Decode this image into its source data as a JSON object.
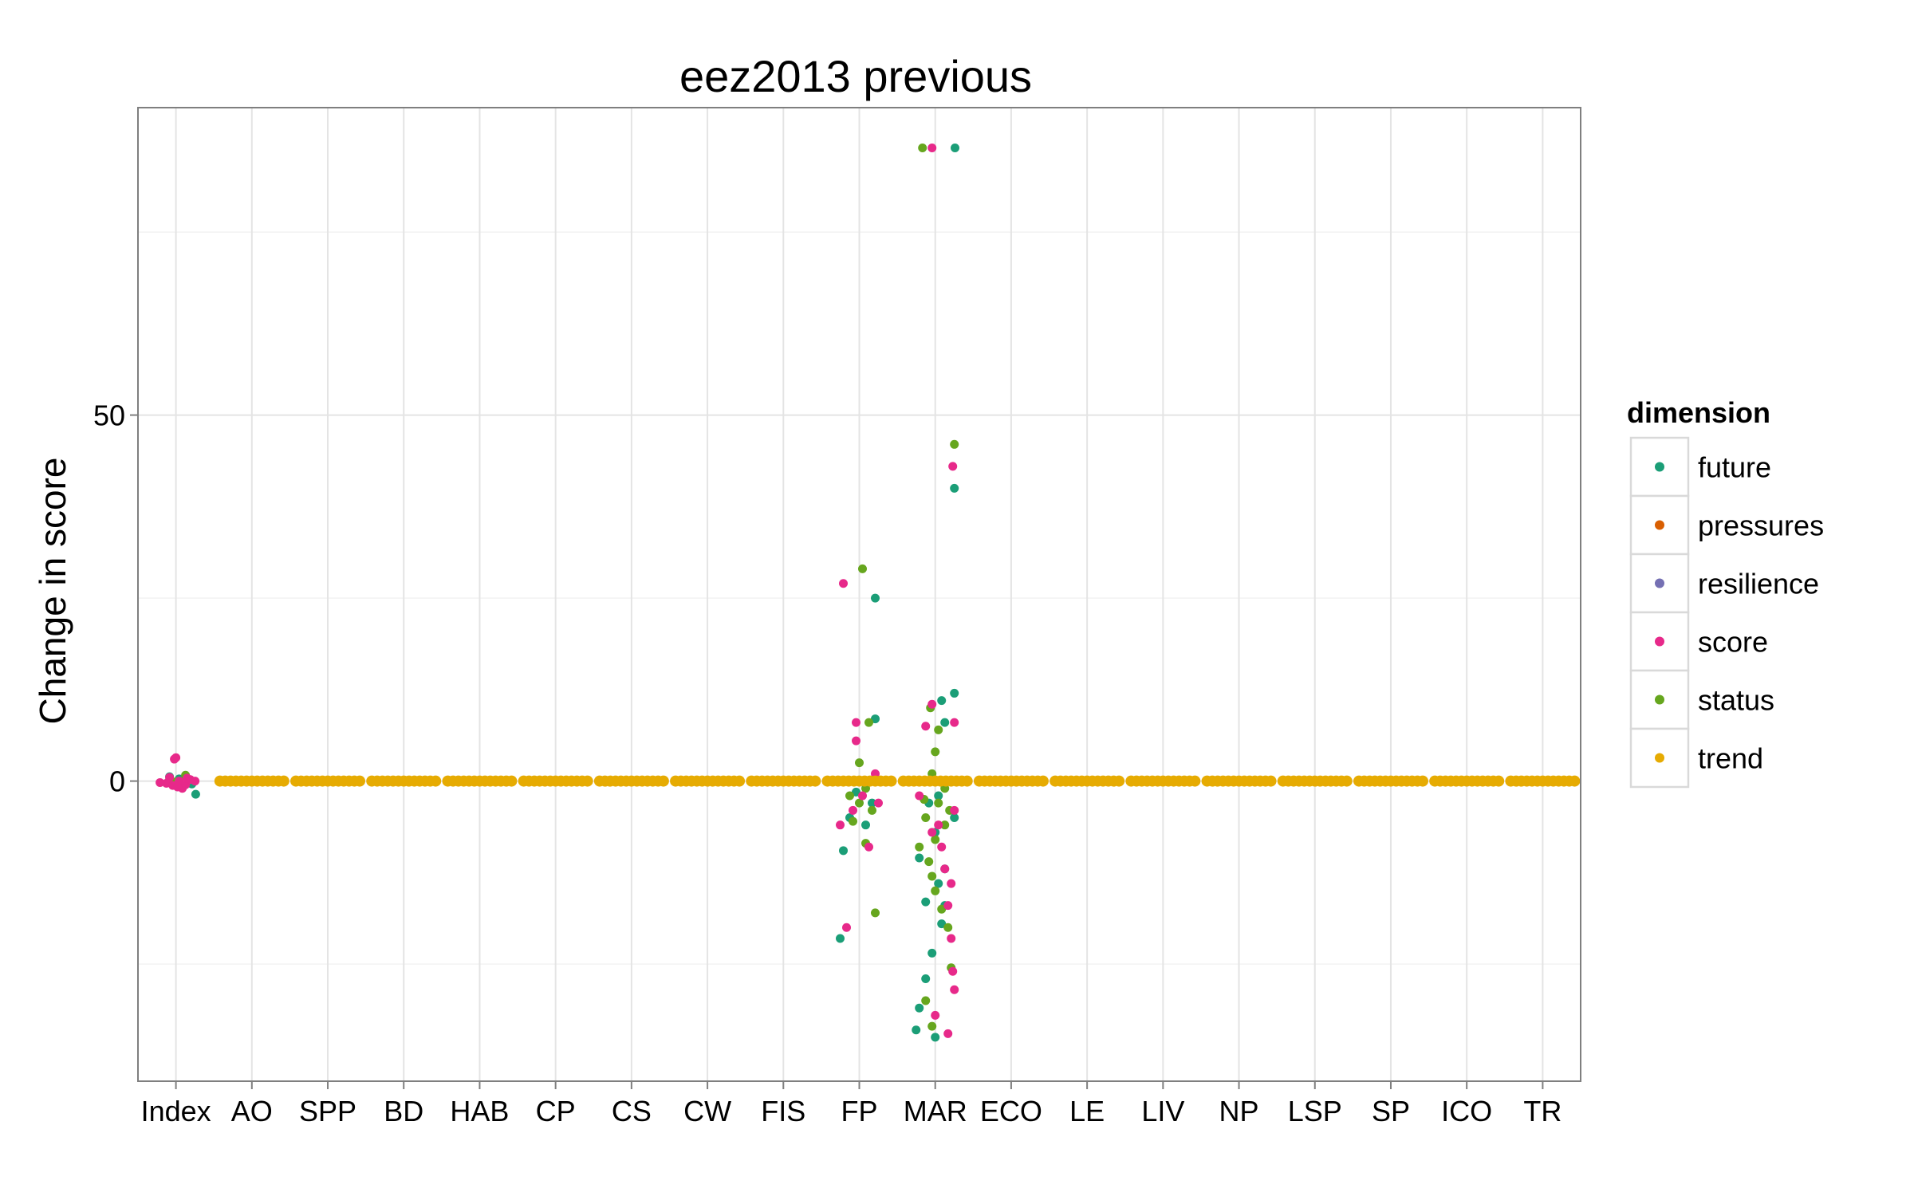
{
  "chart_data": {
    "type": "scatter",
    "title": "eez2013 previous",
    "xlabel": "",
    "ylabel": "Change in score",
    "categories": [
      "Index",
      "AO",
      "SPP",
      "BD",
      "HAB",
      "CP",
      "CS",
      "CW",
      "FIS",
      "FP",
      "MAR",
      "ECO",
      "LE",
      "LIV",
      "NP",
      "LSP",
      "SP",
      "ICO",
      "TR"
    ],
    "ylim": [
      -41,
      92
    ],
    "yticks": [
      0,
      50
    ],
    "grid": true,
    "legend": {
      "title": "dimension",
      "placement": "right",
      "entries": [
        {
          "name": "future",
          "color": "#1b9e77"
        },
        {
          "name": "pressures",
          "color": "#d95f02"
        },
        {
          "name": "resilience",
          "color": "#7570b3"
        },
        {
          "name": "score",
          "color": "#e7298a"
        },
        {
          "name": "status",
          "color": "#66a61e"
        },
        {
          "name": "trend",
          "color": "#e6ab02"
        }
      ]
    },
    "series": [
      {
        "name": "future",
        "color": "#1b9e77",
        "points": [
          [
            "Index",
            -0.4,
            0.5
          ],
          [
            "Index",
            -1.8,
            0.62
          ],
          [
            "Index",
            0.6,
            -0.2
          ],
          [
            "Index",
            0.3,
            0.1
          ],
          [
            "FP",
            25,
            0.5
          ],
          [
            "FP",
            8.5,
            0.5
          ],
          [
            "FP",
            -21.5,
            -0.6
          ],
          [
            "FP",
            -9.5,
            -0.5
          ],
          [
            "FP",
            -6,
            0.2
          ],
          [
            "FP",
            -5,
            -0.3
          ],
          [
            "FP",
            -3,
            0.4
          ],
          [
            "FP",
            -1.5,
            -0.1
          ],
          [
            "MAR",
            86.5,
            0.62
          ],
          [
            "MAR",
            40,
            0.6
          ],
          [
            "MAR",
            12,
            0.6
          ],
          [
            "MAR",
            11,
            0.2
          ],
          [
            "MAR",
            8,
            0.3
          ],
          [
            "MAR",
            -5,
            0.6
          ],
          [
            "MAR",
            -10.5,
            -0.5
          ],
          [
            "MAR",
            -12,
            0.3
          ],
          [
            "MAR",
            -16.5,
            -0.3
          ],
          [
            "MAR",
            -17,
            0.3
          ],
          [
            "MAR",
            -23.5,
            -0.1
          ],
          [
            "MAR",
            -27,
            -0.3
          ],
          [
            "MAR",
            -31,
            -0.5
          ],
          [
            "MAR",
            -34,
            -0.6
          ],
          [
            "MAR",
            -35,
            0.0
          ],
          [
            "MAR",
            -3,
            -0.2
          ],
          [
            "MAR",
            -2,
            0.1
          ],
          [
            "MAR",
            -7,
            0.0
          ],
          [
            "MAR",
            -14,
            0.1
          ],
          [
            "MAR",
            -19.5,
            0.2
          ]
        ]
      },
      {
        "name": "pressures",
        "color": "#d95f02",
        "points": []
      },
      {
        "name": "resilience",
        "color": "#7570b3",
        "points": []
      },
      {
        "name": "score",
        "color": "#e7298a",
        "points": [
          [
            "Index",
            3,
            -0.05
          ],
          [
            "Index",
            3.2,
            0.0
          ],
          [
            "Index",
            0.5,
            -0.2
          ],
          [
            "Index",
            0,
            0.1
          ],
          [
            "Index",
            -0.5,
            0.3
          ],
          [
            "Index",
            -1,
            0.2
          ],
          [
            "Index",
            -0.3,
            -0.3
          ],
          [
            "Index",
            0.2,
            0.45
          ],
          [
            "Index",
            -0.6,
            -0.1
          ],
          [
            "Index",
            0,
            0.6
          ],
          [
            "Index",
            -0.2,
            -0.5
          ],
          [
            "Index",
            0.4,
            0.35
          ],
          [
            "Index",
            -0.8,
            0.05
          ],
          [
            "FP",
            27,
            -0.5
          ],
          [
            "FP",
            8,
            -0.1
          ],
          [
            "FP",
            5.5,
            -0.1
          ],
          [
            "FP",
            1,
            0.5
          ],
          [
            "FP",
            -20,
            -0.4
          ],
          [
            "FP",
            -9,
            0.3
          ],
          [
            "FP",
            -4,
            -0.2
          ],
          [
            "FP",
            -2,
            0.1
          ],
          [
            "FP",
            -6,
            -0.6
          ],
          [
            "FP",
            -3,
            0.6
          ],
          [
            "MAR",
            86.5,
            -0.1
          ],
          [
            "MAR",
            43,
            0.55
          ],
          [
            "MAR",
            10.5,
            -0.1
          ],
          [
            "MAR",
            8,
            0.6
          ],
          [
            "MAR",
            7.5,
            -0.3
          ],
          [
            "MAR",
            -4,
            0.6
          ],
          [
            "MAR",
            -6,
            0.1
          ],
          [
            "MAR",
            -9,
            0.2
          ],
          [
            "MAR",
            -12,
            0.3
          ],
          [
            "MAR",
            -14,
            0.5
          ],
          [
            "MAR",
            -17,
            0.4
          ],
          [
            "MAR",
            -21.5,
            0.5
          ],
          [
            "MAR",
            -26,
            0.55
          ],
          [
            "MAR",
            -28.5,
            0.6
          ],
          [
            "MAR",
            -32,
            0.0
          ],
          [
            "MAR",
            -34.5,
            0.4
          ],
          [
            "MAR",
            -2,
            -0.5
          ],
          [
            "MAR",
            -7,
            -0.1
          ]
        ]
      },
      {
        "name": "status",
        "color": "#66a61e",
        "points": [
          [
            "Index",
            0.8,
            0.3
          ],
          [
            "Index",
            0.2,
            -0.2
          ],
          [
            "Index",
            -0.1,
            0.0
          ],
          [
            "FP",
            29,
            0.1
          ],
          [
            "FP",
            8,
            0.3
          ],
          [
            "FP",
            2.5,
            0.0
          ],
          [
            "FP",
            -8.5,
            0.2
          ],
          [
            "FP",
            -18,
            0.5
          ],
          [
            "FP",
            -2,
            -0.3
          ],
          [
            "FP",
            -4,
            0.4
          ],
          [
            "FP",
            -1,
            0.2
          ],
          [
            "FP",
            -5.5,
            -0.2
          ],
          [
            "FP",
            -3,
            0.0
          ],
          [
            "MAR",
            86.5,
            -0.4
          ],
          [
            "MAR",
            46,
            0.6
          ],
          [
            "MAR",
            10,
            -0.15
          ],
          [
            "MAR",
            7,
            0.1
          ],
          [
            "MAR",
            4,
            0.0
          ],
          [
            "MAR",
            1,
            -0.1
          ],
          [
            "MAR",
            -3,
            0.1
          ],
          [
            "MAR",
            -5,
            -0.3
          ],
          [
            "MAR",
            -8,
            0.0
          ],
          [
            "MAR",
            -11,
            -0.2
          ],
          [
            "MAR",
            -13,
            -0.1
          ],
          [
            "MAR",
            -15,
            0.0
          ],
          [
            "MAR",
            -17.5,
            0.2
          ],
          [
            "MAR",
            -20,
            0.4
          ],
          [
            "MAR",
            -25.5,
            0.5
          ],
          [
            "MAR",
            -30,
            -0.3
          ],
          [
            "MAR",
            -33.5,
            -0.1
          ],
          [
            "MAR",
            -1,
            0.3
          ],
          [
            "MAR",
            -6,
            0.3
          ],
          [
            "MAR",
            -9,
            -0.5
          ],
          [
            "MAR",
            -4,
            0.45
          ],
          [
            "MAR",
            -2.5,
            -0.35
          ]
        ]
      },
      {
        "name": "trend",
        "color": "#e6ab02",
        "points": [
          [
            "AO",
            0,
            0
          ],
          [
            "SPP",
            0,
            0
          ],
          [
            "BD",
            0,
            0
          ],
          [
            "HAB",
            0,
            0
          ],
          [
            "CP",
            0,
            0
          ],
          [
            "CS",
            0,
            0
          ],
          [
            "CW",
            0,
            0
          ],
          [
            "FIS",
            0,
            0
          ],
          [
            "FP",
            0,
            0
          ],
          [
            "MAR",
            0,
            0
          ],
          [
            "ECO",
            0,
            0
          ],
          [
            "LE",
            0,
            0
          ],
          [
            "LIV",
            0,
            0
          ],
          [
            "NP",
            0,
            0
          ],
          [
            "LSP",
            0,
            0
          ],
          [
            "SP",
            0,
            0
          ],
          [
            "ICO",
            0,
            0
          ],
          [
            "TR",
            0,
            0
          ]
        ]
      }
    ]
  }
}
